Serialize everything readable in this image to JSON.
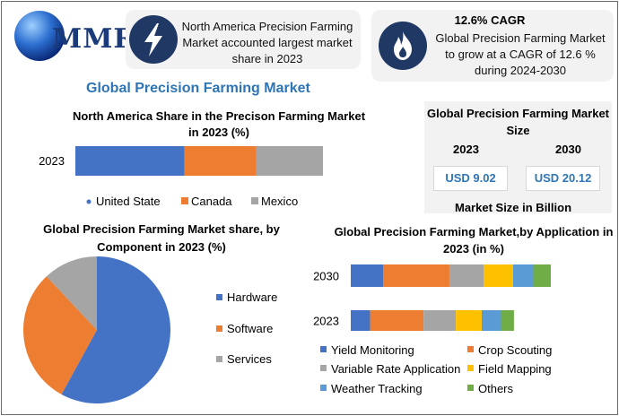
{
  "brand": {
    "logo_text": "MMR"
  },
  "banner1": {
    "icon": "lightning-bolt-icon",
    "text": "North America Precision Farming Market accounted largest market share in 2023"
  },
  "banner2": {
    "icon": "flame-icon",
    "headline": "12.6% CAGR",
    "text": "Global Precision Farming Market to grow at a CAGR of 12.6 % during 2024-2030"
  },
  "page_title": "Global Precision Farming Market",
  "market_size": {
    "title": "Global Precision Farming Market Size",
    "year1": "2023",
    "year2": "2030",
    "value1": "USD 9.02",
    "value2": "USD 20.12",
    "footer": "Market Size in Billion"
  },
  "colors": {
    "blue": "#4472c4",
    "orange": "#ed7d31",
    "gray": "#a5a5a5",
    "yellow": "#ffc000",
    "lightblue": "#5b9bd5",
    "green": "#70ad47",
    "accent": "#2e75b6",
    "icon_bg": "#1f3864"
  },
  "chart_data": [
    {
      "type": "bar",
      "orientation": "horizontal",
      "stacked": true,
      "title": "North America Share in the Precison Farming Market in 2023 (%)",
      "categories": [
        "2023"
      ],
      "series": [
        {
          "name": "United State",
          "values": [
            44
          ]
        },
        {
          "name": "Canada",
          "values": [
            29
          ]
        },
        {
          "name": "Mexico",
          "values": [
            27
          ]
        }
      ],
      "legend": "bottom"
    },
    {
      "type": "pie",
      "title": "Global Precision Farming Market share, by Component in 2023  (%)",
      "labels": [
        "Hardware",
        "Software",
        "Services"
      ],
      "values": [
        58,
        30,
        12
      ],
      "legend": "right"
    },
    {
      "type": "bar",
      "orientation": "horizontal",
      "stacked": true,
      "title": "Global Precision Farming Market,by Application in 2023 (in %)",
      "categories": [
        "2030",
        "2023"
      ],
      "series": [
        {
          "name": "Yield Monitoring",
          "values": [
            35,
            21
          ]
        },
        {
          "name": "Crop Scouting",
          "values": [
            72,
            58
          ]
        },
        {
          "name": "Variable Rate Application",
          "values": [
            37,
            35
          ]
        },
        {
          "name": "Field Mapping",
          "values": [
            32,
            28
          ]
        },
        {
          "name": "Weather Tracking",
          "values": [
            22,
            21
          ]
        },
        {
          "name": "Others",
          "values": [
            19,
            14
          ]
        }
      ],
      "legend": "bottom"
    }
  ]
}
